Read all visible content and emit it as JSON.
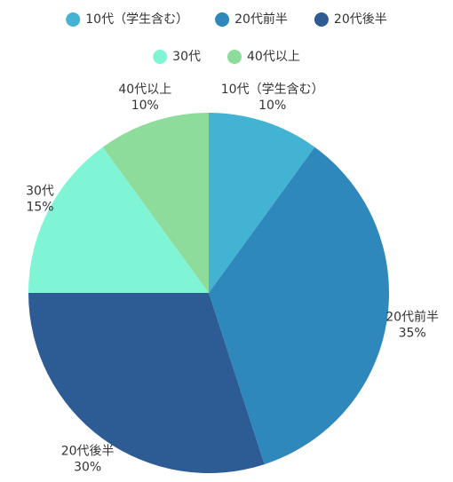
{
  "chart_data": {
    "type": "pie",
    "categories": [
      "10代（学生含む）",
      "20代前半",
      "20代後半",
      "30代",
      "40代以上"
    ],
    "values": [
      10,
      35,
      30,
      15,
      10
    ],
    "value_labels": [
      "10%",
      "35%",
      "30%",
      "15%",
      "10%"
    ],
    "colors": [
      "#42b3d2",
      "#2e88bb",
      "#2d5c95",
      "#80f5d6",
      "#8edc9b"
    ],
    "legend": "top"
  }
}
